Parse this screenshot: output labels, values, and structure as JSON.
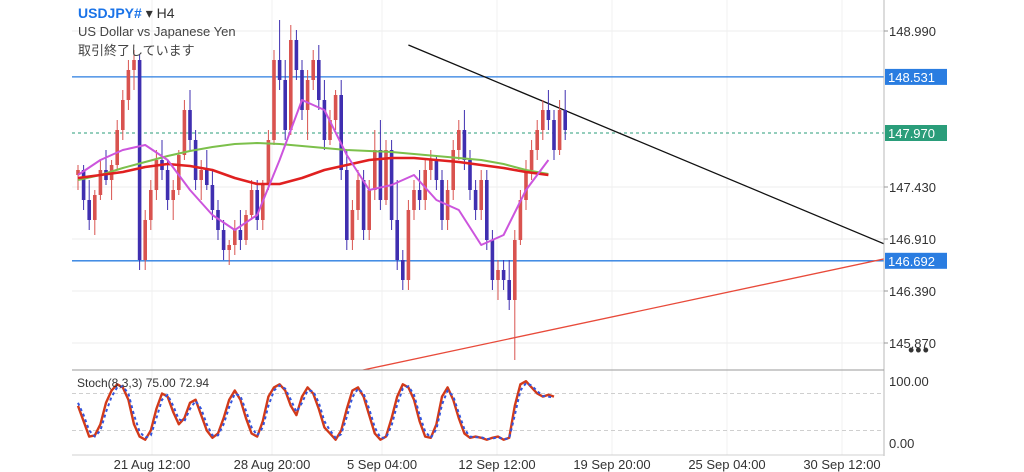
{
  "header": {
    "symbol": "USDJPY#",
    "dropdown_glyph": "▾",
    "timeframe": "H4",
    "instrument_name": "US Dollar vs Japanese Yen",
    "status_text": "取引終了しています"
  },
  "more_menu_glyph": "•••",
  "colors": {
    "bull": "#d9534f",
    "bear": "#3f2fb0",
    "ma_green": "#7cc04b",
    "ma_red": "#e02020",
    "ma_magenta": "#cc55dd",
    "hline": "#2a7de1",
    "trend_red": "#e84a3a",
    "trend_black": "#111111",
    "last_price_bg": "#2a9d7a",
    "stoch_main": "#d23a1a",
    "stoch_signal": "#3355dd"
  },
  "chart_data": [
    {
      "type": "candlestick",
      "price_axis_ticks": [
        "148.990",
        "147.430",
        "146.910",
        "146.390",
        "145.870"
      ],
      "ylim": [
        145.6,
        149.3
      ],
      "time_axis_ticks": [
        "21 Aug 12:00",
        "28 Aug 20:00",
        "5 Sep 04:00",
        "12 Sep 12:00",
        "19 Sep 20:00",
        "25 Sep 04:00",
        "30 Sep 12:00"
      ],
      "horizontal_levels": [
        {
          "price": 148.531,
          "label": "148.531"
        },
        {
          "price": 146.692,
          "label": "146.692"
        }
      ],
      "last_price": {
        "price": 147.97,
        "label": "147.970"
      },
      "trendlines": [
        {
          "color": "trend_black",
          "from": {
            "bar": 59,
            "price": 148.85
          },
          "to": {
            "bar": 150,
            "price": 146.72
          }
        },
        {
          "color": "trend_red",
          "from": {
            "bar": -1,
            "price": 144.98
          },
          "to": {
            "bar": 210,
            "price": 147.5
          }
        }
      ],
      "candles": [
        [
          147.55,
          147.65,
          147.4,
          147.6
        ],
        [
          147.6,
          147.65,
          147.2,
          147.3
        ],
        [
          147.3,
          147.5,
          147.0,
          147.1
        ],
        [
          147.1,
          147.4,
          146.95,
          147.35
        ],
        [
          147.35,
          147.7,
          147.3,
          147.6
        ],
        [
          147.6,
          147.8,
          147.45,
          147.5
        ],
        [
          147.5,
          147.7,
          147.3,
          147.65
        ],
        [
          147.65,
          148.1,
          147.6,
          148.0
        ],
        [
          148.0,
          148.4,
          147.9,
          148.3
        ],
        [
          148.3,
          148.7,
          148.2,
          148.6
        ],
        [
          148.6,
          148.8,
          148.4,
          148.7
        ],
        [
          148.7,
          148.75,
          146.6,
          146.7
        ],
        [
          146.7,
          147.2,
          146.6,
          147.1
        ],
        [
          147.1,
          147.5,
          147.0,
          147.4
        ],
        [
          147.4,
          147.8,
          147.3,
          147.7
        ],
        [
          147.7,
          147.9,
          147.5,
          147.6
        ],
        [
          147.6,
          147.7,
          147.2,
          147.3
        ],
        [
          147.3,
          147.5,
          147.1,
          147.4
        ],
        [
          147.4,
          147.8,
          147.35,
          147.75
        ],
        [
          147.75,
          148.3,
          147.7,
          148.2
        ],
        [
          148.2,
          148.4,
          147.8,
          147.9
        ],
        [
          147.9,
          148.0,
          147.4,
          147.5
        ],
        [
          147.5,
          147.7,
          147.3,
          147.6
        ],
        [
          147.6,
          147.8,
          147.4,
          147.45
        ],
        [
          147.45,
          147.6,
          147.1,
          147.2
        ],
        [
          147.2,
          147.3,
          146.9,
          147.0
        ],
        [
          147.0,
          147.1,
          146.7,
          146.8
        ],
        [
          146.8,
          146.9,
          146.65,
          146.85
        ],
        [
          146.85,
          147.1,
          146.75,
          147.0
        ],
        [
          147.0,
          147.2,
          146.8,
          146.9
        ],
        [
          146.9,
          147.2,
          146.85,
          147.15
        ],
        [
          147.15,
          147.5,
          147.1,
          147.4
        ],
        [
          147.4,
          147.5,
          147.0,
          147.1
        ],
        [
          147.1,
          147.5,
          147.0,
          147.45
        ],
        [
          147.45,
          148.0,
          147.4,
          147.9
        ],
        [
          147.9,
          148.8,
          147.85,
          148.7
        ],
        [
          148.7,
          149.1,
          148.4,
          148.5
        ],
        [
          148.5,
          148.7,
          147.9,
          148.0
        ],
        [
          148.0,
          149.05,
          147.95,
          148.9
        ],
        [
          148.9,
          149.0,
          148.5,
          148.6
        ],
        [
          148.6,
          148.7,
          148.1,
          148.2
        ],
        [
          148.2,
          148.6,
          147.9,
          148.5
        ],
        [
          148.5,
          148.8,
          148.4,
          148.7
        ],
        [
          148.7,
          148.85,
          148.2,
          148.3
        ],
        [
          148.3,
          148.5,
          147.8,
          147.9
        ],
        [
          147.9,
          148.2,
          147.85,
          148.1
        ],
        [
          148.1,
          148.4,
          148.0,
          148.35
        ],
        [
          148.35,
          148.5,
          147.5,
          147.6
        ],
        [
          147.6,
          147.8,
          146.8,
          146.9
        ],
        [
          146.9,
          147.3,
          146.8,
          147.2
        ],
        [
          147.2,
          147.6,
          147.1,
          147.5
        ],
        [
          147.5,
          147.6,
          146.9,
          147.0
        ],
        [
          147.0,
          147.5,
          146.9,
          147.4
        ],
        [
          147.4,
          148.0,
          147.3,
          147.8
        ],
        [
          147.8,
          148.1,
          147.2,
          147.3
        ],
        [
          147.3,
          147.9,
          147.25,
          147.8
        ],
        [
          147.8,
          147.9,
          147.0,
          147.1
        ],
        [
          147.1,
          147.5,
          146.6,
          146.7
        ],
        [
          146.7,
          146.8,
          146.4,
          146.5
        ],
        [
          146.5,
          147.3,
          146.4,
          147.2
        ],
        [
          147.2,
          147.5,
          147.1,
          147.4
        ],
        [
          147.4,
          147.6,
          147.2,
          147.3
        ],
        [
          147.3,
          147.7,
          147.2,
          147.6
        ],
        [
          147.6,
          147.8,
          147.5,
          147.7
        ],
        [
          147.7,
          147.75,
          147.4,
          147.5
        ],
        [
          147.5,
          147.6,
          147.0,
          147.1
        ],
        [
          147.1,
          147.5,
          147.0,
          147.4
        ],
        [
          147.4,
          147.9,
          147.3,
          147.8
        ],
        [
          147.8,
          148.1,
          147.7,
          148.0
        ],
        [
          148.0,
          148.2,
          147.6,
          147.7
        ],
        [
          147.7,
          147.8,
          147.3,
          147.4
        ],
        [
          147.4,
          147.5,
          147.1,
          147.2
        ],
        [
          147.2,
          147.6,
          147.1,
          147.5
        ],
        [
          147.5,
          147.6,
          146.8,
          146.9
        ],
        [
          146.9,
          147.0,
          146.4,
          146.5
        ],
        [
          146.5,
          146.7,
          146.3,
          146.6
        ],
        [
          146.6,
          146.7,
          146.4,
          146.5
        ],
        [
          146.5,
          146.7,
          146.2,
          146.3
        ],
        [
          146.3,
          147.0,
          145.7,
          146.9
        ],
        [
          146.9,
          147.4,
          146.85,
          147.3
        ],
        [
          147.3,
          147.7,
          147.2,
          147.6
        ],
        [
          147.6,
          147.9,
          147.5,
          147.8
        ],
        [
          147.8,
          148.1,
          147.7,
          148.0
        ],
        [
          148.0,
          148.3,
          147.9,
          148.2
        ],
        [
          148.2,
          148.4,
          148.0,
          148.1
        ],
        [
          148.1,
          148.2,
          147.7,
          147.8
        ],
        [
          147.8,
          148.3,
          147.75,
          148.2
        ],
        [
          148.2,
          148.4,
          147.9,
          148.0
        ]
      ],
      "moving_averages": [
        {
          "color": "ma_green",
          "values": [
            147.5,
            147.55,
            147.62,
            147.68,
            147.74,
            147.79,
            147.83,
            147.86,
            147.87,
            147.86,
            147.84,
            147.82,
            147.8,
            147.79,
            147.78,
            147.76,
            147.74,
            147.72,
            147.7,
            147.66,
            147.6,
            147.56
          ]
        },
        {
          "color": "ma_red",
          "values": [
            147.52,
            147.55,
            147.58,
            147.63,
            147.66,
            147.64,
            147.6,
            147.52,
            147.46,
            147.46,
            147.52,
            147.6,
            147.65,
            147.7,
            147.72,
            147.72,
            147.7,
            147.68,
            147.65,
            147.62,
            147.58,
            147.55
          ]
        },
        {
          "color": "ma_magenta",
          "values": [
            147.55,
            147.7,
            147.8,
            147.85,
            147.7,
            147.4,
            147.15,
            147.0,
            147.15,
            147.7,
            148.3,
            148.2,
            147.75,
            147.4,
            147.45,
            147.55,
            147.3,
            147.2,
            146.85,
            146.95,
            147.4,
            147.7
          ]
        }
      ]
    },
    {
      "type": "line",
      "indicator_label": "Stoch(8,3,3) 75.00 72.94",
      "y_axis_ticks": [
        "100.00",
        "0.00"
      ],
      "ylim": [
        -15,
        115
      ],
      "levels": [
        80,
        20
      ],
      "series": [
        {
          "color": "stoch_main",
          "values": [
            60,
            35,
            10,
            12,
            30,
            65,
            85,
            95,
            90,
            70,
            30,
            10,
            5,
            20,
            55,
            80,
            75,
            50,
            30,
            40,
            65,
            70,
            45,
            20,
            8,
            15,
            40,
            70,
            85,
            70,
            40,
            15,
            10,
            35,
            75,
            90,
            95,
            85,
            60,
            45,
            75,
            90,
            80,
            55,
            25,
            15,
            5,
            20,
            55,
            85,
            90,
            75,
            45,
            15,
            5,
            10,
            40,
            75,
            95,
            90,
            70,
            35,
            10,
            8,
            30,
            75,
            90,
            70,
            40,
            15,
            8,
            10,
            8,
            5,
            8,
            10,
            5,
            8,
            60,
            95,
            100,
            90,
            80,
            75,
            78,
            75
          ]
        },
        {
          "color": "stoch_signal",
          "values": [
            65,
            45,
            20,
            10,
            20,
            50,
            75,
            90,
            92,
            80,
            45,
            18,
            8,
            12,
            40,
            70,
            78,
            60,
            38,
            35,
            55,
            68,
            55,
            30,
            12,
            12,
            30,
            58,
            80,
            76,
            52,
            25,
            12,
            25,
            60,
            85,
            93,
            88,
            70,
            50,
            65,
            85,
            84,
            65,
            35,
            20,
            8,
            14,
            42,
            74,
            88,
            80,
            55,
            25,
            8,
            8,
            28,
            62,
            88,
            92,
            78,
            45,
            18,
            8,
            22,
            62,
            85,
            76,
            48,
            22,
            10,
            9,
            9,
            6,
            7,
            9,
            6,
            7,
            45,
            85,
            97,
            93,
            84,
            76,
            75,
            73
          ]
        }
      ]
    }
  ]
}
